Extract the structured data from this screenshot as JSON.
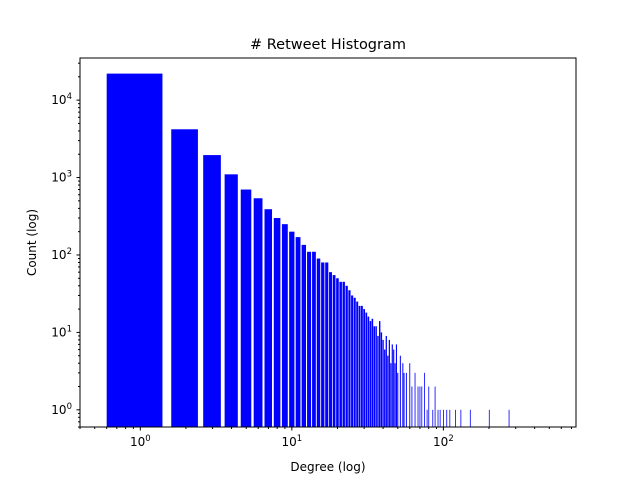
{
  "chart_data": {
    "type": "bar",
    "title": "# Retweet Histogram",
    "xlabel": "Degree (log)",
    "ylabel": "Count (log)",
    "xscale": "log",
    "yscale": "log",
    "xlim": [
      0.4,
      750
    ],
    "ylim": [
      0.6,
      35000
    ],
    "grid": false,
    "color": "#0000ff",
    "x_ticks": [
      {
        "value": 1,
        "base": "10",
        "exp": "0"
      },
      {
        "value": 10,
        "base": "10",
        "exp": "1"
      },
      {
        "value": 100,
        "base": "10",
        "exp": "2"
      }
    ],
    "y_ticks": [
      {
        "value": 1,
        "base": "10",
        "exp": "0"
      },
      {
        "value": 10,
        "base": "10",
        "exp": "1"
      },
      {
        "value": 100,
        "base": "10",
        "exp": "2"
      },
      {
        "value": 1000,
        "base": "10",
        "exp": "3"
      },
      {
        "value": 10000,
        "base": "10",
        "exp": "4"
      }
    ],
    "bars": [
      {
        "x": 1,
        "y": 22000
      },
      {
        "x": 2,
        "y": 4200
      },
      {
        "x": 3,
        "y": 1950
      },
      {
        "x": 4,
        "y": 1100
      },
      {
        "x": 5,
        "y": 700
      },
      {
        "x": 6,
        "y": 540
      },
      {
        "x": 7,
        "y": 390
      },
      {
        "x": 8,
        "y": 300
      },
      {
        "x": 9,
        "y": 250
      },
      {
        "x": 10,
        "y": 200
      },
      {
        "x": 11,
        "y": 170
      },
      {
        "x": 12,
        "y": 135
      },
      {
        "x": 13,
        "y": 110
      },
      {
        "x": 14,
        "y": 110
      },
      {
        "x": 15,
        "y": 90
      },
      {
        "x": 16,
        "y": 80
      },
      {
        "x": 17,
        "y": 80
      },
      {
        "x": 18,
        "y": 60
      },
      {
        "x": 19,
        "y": 55
      },
      {
        "x": 20,
        "y": 50
      },
      {
        "x": 21,
        "y": 45
      },
      {
        "x": 22,
        "y": 45
      },
      {
        "x": 23,
        "y": 40
      },
      {
        "x": 24,
        "y": 35
      },
      {
        "x": 25,
        "y": 30
      },
      {
        "x": 26,
        "y": 28
      },
      {
        "x": 27,
        "y": 25
      },
      {
        "x": 28,
        "y": 22
      },
      {
        "x": 29,
        "y": 22
      },
      {
        "x": 30,
        "y": 20
      },
      {
        "x": 31,
        "y": 18
      },
      {
        "x": 32,
        "y": 16
      },
      {
        "x": 33,
        "y": 14
      },
      {
        "x": 34,
        "y": 15
      },
      {
        "x": 35,
        "y": 12
      },
      {
        "x": 36,
        "y": 12
      },
      {
        "x": 37,
        "y": 9
      },
      {
        "x": 38,
        "y": 14
      },
      {
        "x": 39,
        "y": 10
      },
      {
        "x": 40,
        "y": 8
      },
      {
        "x": 41,
        "y": 6
      },
      {
        "x": 42,
        "y": 9
      },
      {
        "x": 43,
        "y": 5
      },
      {
        "x": 44,
        "y": 8
      },
      {
        "x": 45,
        "y": 4
      },
      {
        "x": 46,
        "y": 7
      },
      {
        "x": 47,
        "y": 6
      },
      {
        "x": 48,
        "y": 4
      },
      {
        "x": 49,
        "y": 7
      },
      {
        "x": 50,
        "y": 3
      },
      {
        "x": 52,
        "y": 5
      },
      {
        "x": 54,
        "y": 4
      },
      {
        "x": 55,
        "y": 3
      },
      {
        "x": 57,
        "y": 3
      },
      {
        "x": 60,
        "y": 4
      },
      {
        "x": 62,
        "y": 2
      },
      {
        "x": 65,
        "y": 3
      },
      {
        "x": 68,
        "y": 2
      },
      {
        "x": 70,
        "y": 2
      },
      {
        "x": 72,
        "y": 2
      },
      {
        "x": 75,
        "y": 3
      },
      {
        "x": 78,
        "y": 1
      },
      {
        "x": 80,
        "y": 2
      },
      {
        "x": 85,
        "y": 1
      },
      {
        "x": 88,
        "y": 2
      },
      {
        "x": 92,
        "y": 1
      },
      {
        "x": 95,
        "y": 1
      },
      {
        "x": 100,
        "y": 1
      },
      {
        "x": 105,
        "y": 1
      },
      {
        "x": 110,
        "y": 1
      },
      {
        "x": 120,
        "y": 1
      },
      {
        "x": 130,
        "y": 1
      },
      {
        "x": 150,
        "y": 1
      },
      {
        "x": 200,
        "y": 1
      },
      {
        "x": 270,
        "y": 1
      }
    ]
  }
}
